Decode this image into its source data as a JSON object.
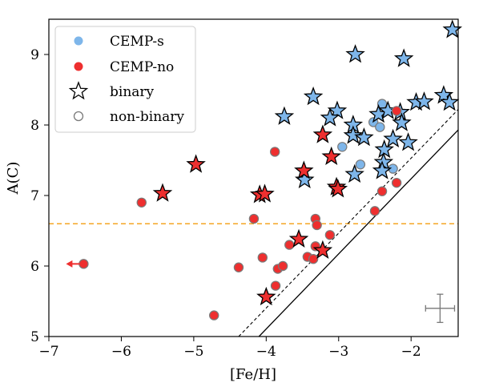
{
  "chart_data": {
    "type": "scatter",
    "xlabel": "[Fe/H]",
    "ylabel": "A(C)",
    "xlim": [
      -7,
      -1.35
    ],
    "ylim": [
      5,
      9.5
    ],
    "xticks": [
      -7,
      -6,
      -5,
      -4,
      -3,
      -2
    ],
    "xtick_labels": [
      "−7",
      "−6",
      "−5",
      "−4",
      "−3",
      "−2"
    ],
    "yticks": [
      5,
      6,
      7,
      8,
      9
    ],
    "ytick_labels": [
      "5",
      "6",
      "7",
      "8",
      "9"
    ],
    "legend_placement": "top-left",
    "legend": [
      {
        "label": "CEMP-s",
        "marker": "circle",
        "color": "#7eb6ea"
      },
      {
        "label": "CEMP-no",
        "marker": "circle",
        "color": "#ee2f2f"
      },
      {
        "label": "binary",
        "marker": "star",
        "color": "#ffffff"
      },
      {
        "label": "non-binary",
        "marker": "circle-open",
        "color": "#ffffff"
      }
    ],
    "colors": {
      "cemp_s": "#7eb6ea",
      "cemp_no": "#ee2f2f",
      "hline": "#f5a623",
      "edge_gray": "#7a7a7a",
      "errorbar": "#777777"
    },
    "hline_y": 6.6,
    "reference_lines": [
      {
        "style": "dashed",
        "points": [
          [
            -4.38,
            5
          ],
          [
            -1.35,
            8.22
          ]
        ]
      },
      {
        "style": "solid",
        "points": [
          [
            -4.1,
            5
          ],
          [
            -1.35,
            7.93
          ]
        ]
      }
    ],
    "upper_limit_arrow": {
      "x": -6.52,
      "y": 6.03
    },
    "errorbar": {
      "x": -1.6,
      "y": 5.4,
      "xerr": 0.2,
      "yerr": 0.2
    },
    "series": [
      {
        "name": "CEMP-s",
        "status": "non-binary",
        "points": [
          [
            -2.95,
            7.69
          ],
          [
            -2.7,
            7.44
          ],
          [
            -2.52,
            8.04
          ],
          [
            -2.43,
            7.97
          ],
          [
            -2.4,
            8.3
          ],
          [
            -2.25,
            7.38
          ]
        ]
      },
      {
        "name": "CEMP-s",
        "status": "binary",
        "points": [
          [
            -1.43,
            9.35
          ],
          [
            -2.77,
            9.0
          ],
          [
            -2.1,
            8.94
          ],
          [
            -3.35,
            8.4
          ],
          [
            -3.02,
            8.2
          ],
          [
            -3.75,
            8.12
          ],
          [
            -3.12,
            8.1
          ],
          [
            -2.8,
            8.0
          ],
          [
            -2.8,
            7.85
          ],
          [
            -2.65,
            7.82
          ],
          [
            -2.45,
            8.15
          ],
          [
            -2.32,
            8.2
          ],
          [
            -2.15,
            8.18
          ],
          [
            -2.13,
            8.03
          ],
          [
            -1.93,
            8.32
          ],
          [
            -1.82,
            8.33
          ],
          [
            -1.55,
            8.42
          ],
          [
            -1.47,
            8.32
          ],
          [
            -2.37,
            7.65
          ],
          [
            -2.25,
            7.8
          ],
          [
            -2.04,
            7.75
          ],
          [
            -2.38,
            7.47
          ],
          [
            -2.4,
            7.35
          ],
          [
            -2.78,
            7.3
          ],
          [
            -3.47,
            7.22
          ]
        ]
      },
      {
        "name": "CEMP-no",
        "status": "non-binary",
        "points": [
          [
            -6.52,
            6.03
          ],
          [
            -5.72,
            6.9
          ],
          [
            -4.72,
            5.3
          ],
          [
            -4.38,
            5.98
          ],
          [
            -4.17,
            6.67
          ],
          [
            -4.05,
            6.12
          ],
          [
            -3.88,
            7.62
          ],
          [
            -3.87,
            5.72
          ],
          [
            -3.84,
            5.96
          ],
          [
            -3.77,
            6.0
          ],
          [
            -3.68,
            6.3
          ],
          [
            -3.43,
            6.13
          ],
          [
            -3.35,
            6.1
          ],
          [
            -3.32,
            6.67
          ],
          [
            -3.32,
            6.28
          ],
          [
            -3.3,
            6.58
          ],
          [
            -3.12,
            6.44
          ],
          [
            -2.5,
            6.78
          ],
          [
            -2.4,
            7.06
          ],
          [
            -2.2,
            7.18
          ],
          [
            -2.2,
            8.2
          ]
        ]
      },
      {
        "name": "CEMP-no",
        "status": "binary",
        "points": [
          [
            -5.43,
            7.03
          ],
          [
            -4.97,
            7.44
          ],
          [
            -4.09,
            7.01
          ],
          [
            -4.02,
            7.02
          ],
          [
            -4.0,
            5.56
          ],
          [
            -3.55,
            6.38
          ],
          [
            -3.48,
            7.35
          ],
          [
            -3.22,
            6.22
          ],
          [
            -3.22,
            7.86
          ],
          [
            -3.1,
            7.55
          ],
          [
            -3.03,
            7.12
          ],
          [
            -3.01,
            7.09
          ]
        ]
      }
    ]
  }
}
